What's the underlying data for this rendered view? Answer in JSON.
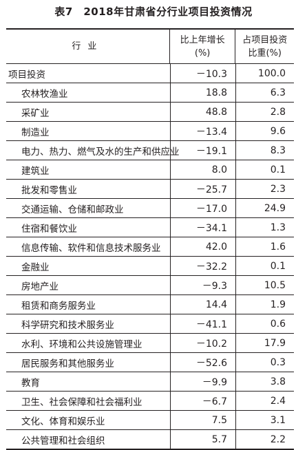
{
  "title": "表7　2018年甘肃省分行业项目投资情况",
  "headers": {
    "industry": "行业",
    "growth_line1": "比上年增长",
    "growth_line2": "(%)",
    "share_line1": "占项目投资",
    "share_line2": "比重(%)"
  },
  "rows": [
    {
      "name": "项目投资",
      "growth": "－10.3",
      "share": "100.0"
    },
    {
      "name": "农林牧渔业",
      "growth": "18.8",
      "share": "6.3"
    },
    {
      "name": "采矿业",
      "growth": "48.8",
      "share": "2.8"
    },
    {
      "name": "制造业",
      "growth": "－13.4",
      "share": "9.6"
    },
    {
      "name": "电力、热力、燃气及水的生产和供应业",
      "growth": "－19.1",
      "share": "8.3"
    },
    {
      "name": "建筑业",
      "growth": "8.0",
      "share": "0.1"
    },
    {
      "name": "批发和零售业",
      "growth": "－25.7",
      "share": "2.3"
    },
    {
      "name": "交通运输、仓储和邮政业",
      "growth": "－17.0",
      "share": "24.9"
    },
    {
      "name": "住宿和餐饮业",
      "growth": "－34.1",
      "share": "1.3"
    },
    {
      "name": "信息传输、软件和信息技术服务业",
      "growth": "42.0",
      "share": "1.6"
    },
    {
      "name": "金融业",
      "growth": "－32.2",
      "share": "0.1"
    },
    {
      "name": "房地产业",
      "growth": "－9.3",
      "share": "10.5"
    },
    {
      "name": "租赁和商务服务业",
      "growth": "14.4",
      "share": "1.9"
    },
    {
      "name": "科学研究和技术服务业",
      "growth": "－41.1",
      "share": "0.6"
    },
    {
      "name": "水利、环境和公共设施管理业",
      "growth": "－10.2",
      "share": "17.9"
    },
    {
      "name": "居民服务和其他服务业",
      "growth": "－52.6",
      "share": "0.3"
    },
    {
      "name": "教育",
      "growth": "－9.9",
      "share": "3.8"
    },
    {
      "name": "卫生、社会保障和社会福利业",
      "growth": "－6.7",
      "share": "2.4"
    },
    {
      "name": "文化、体育和娱乐业",
      "growth": "7.5",
      "share": "3.1"
    },
    {
      "name": "公共管理和社会组织",
      "growth": "5.7",
      "share": "2.2"
    }
  ]
}
